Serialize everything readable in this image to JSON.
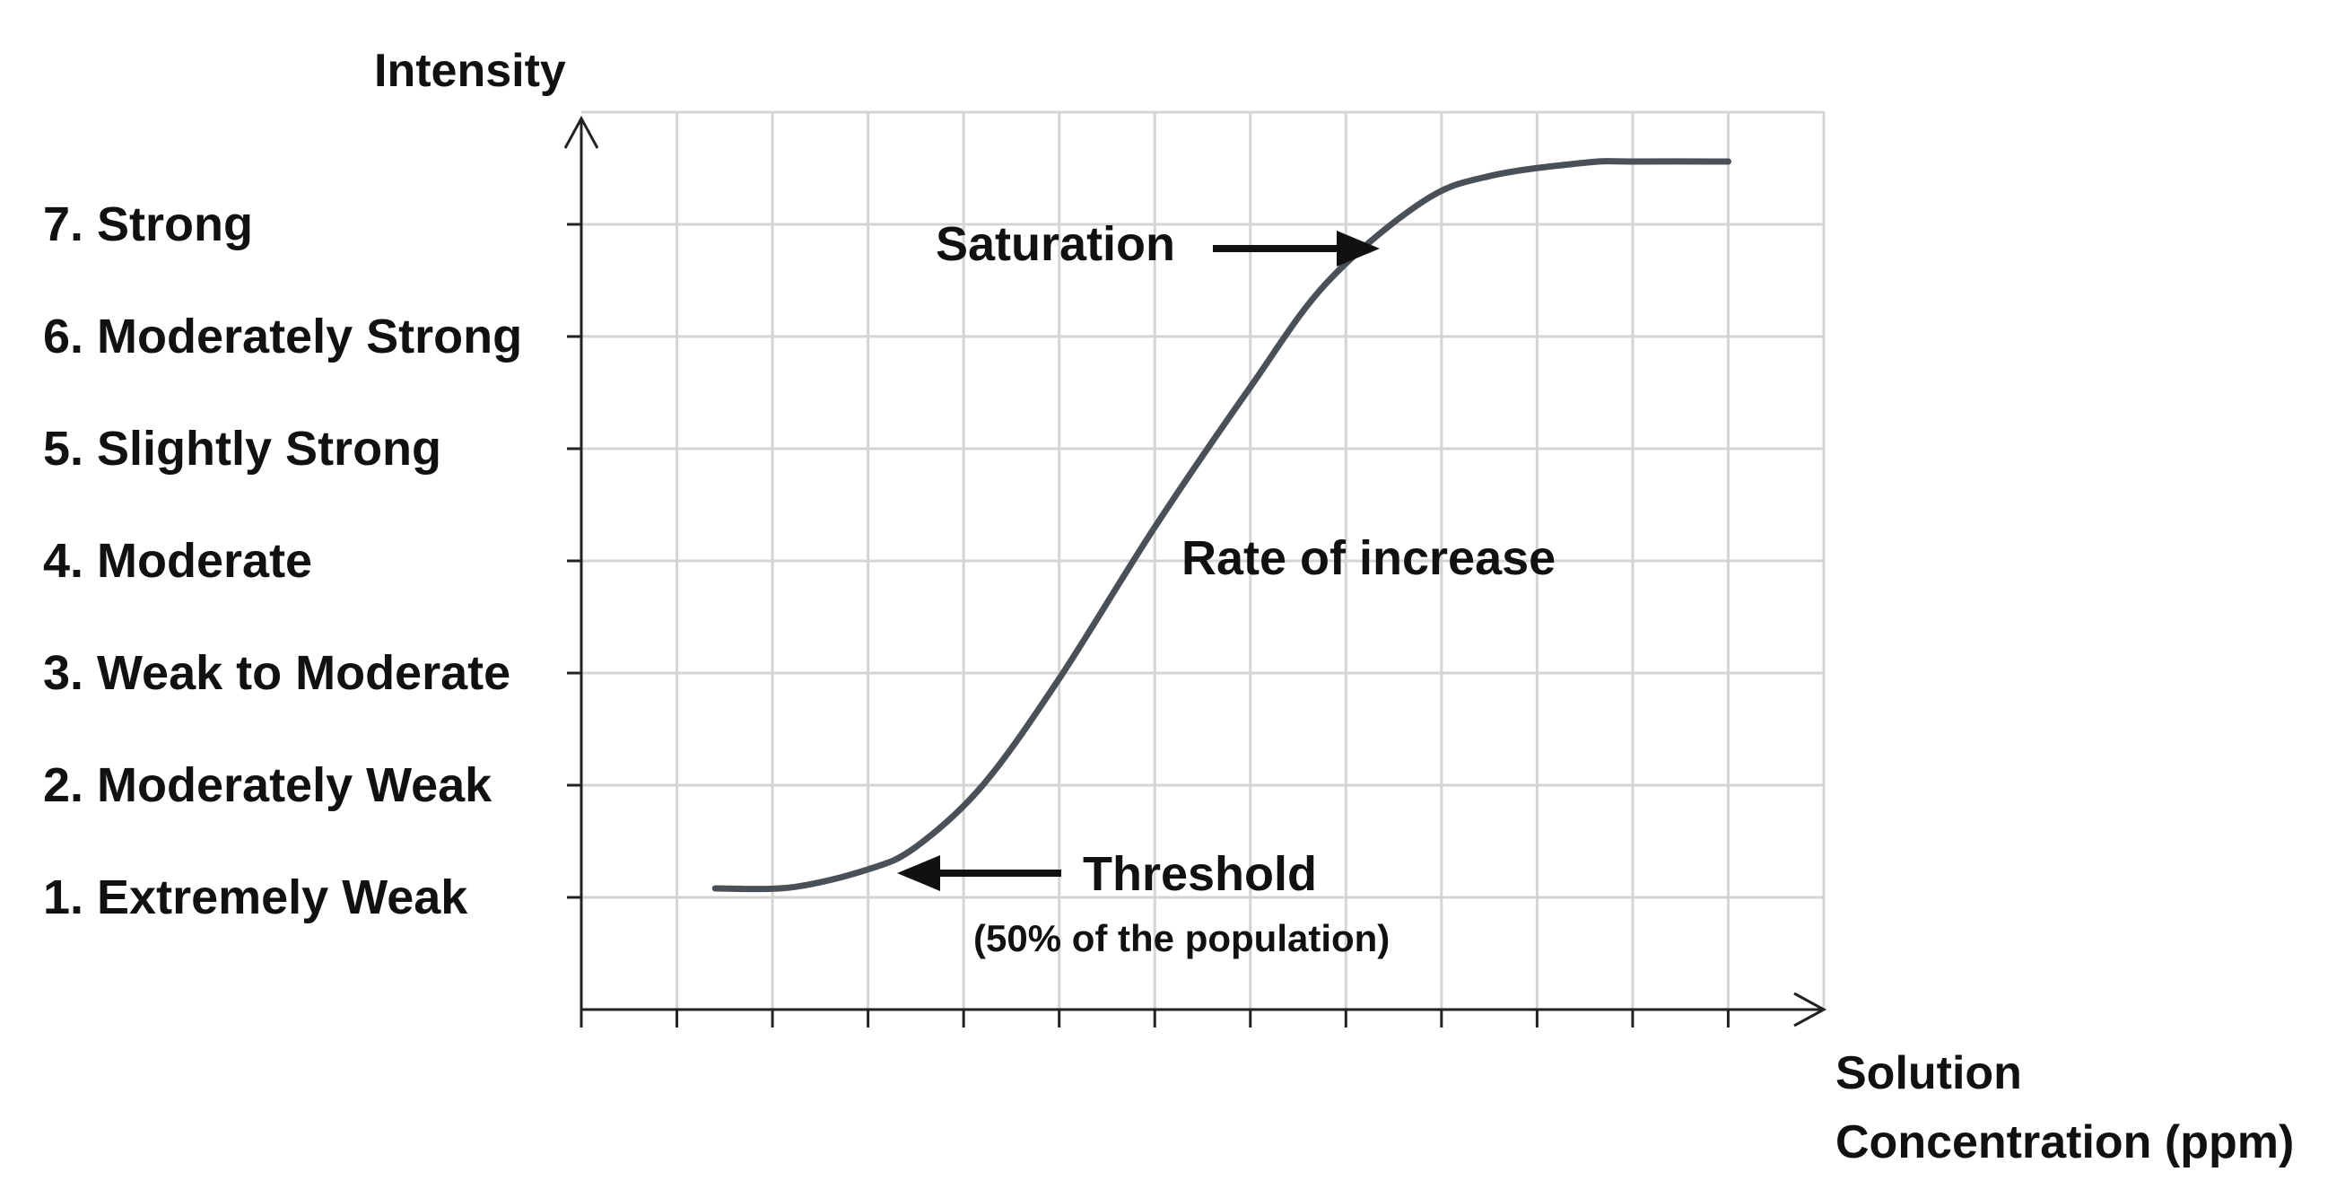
{
  "chart_data": {
    "type": "line",
    "title": "",
    "ylabel": "Intensity",
    "xlabel_lines": [
      "Solution",
      "Concentration (ppm)"
    ],
    "y_tick_labels": [
      "1. Extremely Weak",
      "2. Moderately Weak",
      "3. Weak to Moderate",
      "4. Moderate",
      "5. Slightly Strong",
      "6. Moderately Strong",
      "7. Strong"
    ],
    "ylim": [
      0,
      8
    ],
    "xlim": [
      0,
      13
    ],
    "grid": true,
    "series": [
      {
        "x": [
          1.4,
          2.2,
          3.0,
          3.5,
          4.2,
          5.0,
          6.0,
          7.0,
          7.8,
          8.8,
          9.5,
          10.5,
          11.0,
          12.0
        ],
        "y": [
          1.08,
          1.09,
          1.25,
          1.45,
          2.0,
          2.95,
          4.3,
          5.55,
          6.48,
          7.2,
          7.43,
          7.55,
          7.56,
          7.56
        ]
      }
    ],
    "annotations": {
      "saturation": "Saturation",
      "rate": "Rate of increase",
      "threshold": "Threshold",
      "threshold_note": "(50% of the population)"
    },
    "line_color": "#4a5058",
    "grid_color": "#d4d4d4"
  }
}
